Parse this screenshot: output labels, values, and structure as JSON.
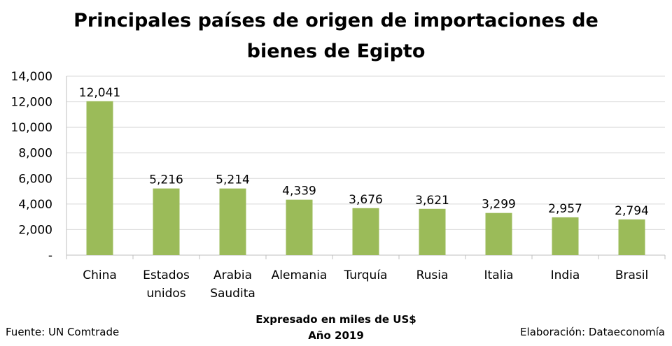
{
  "chart_data": {
    "type": "bar",
    "title_lines": [
      "Principales países de origen de importaciones de",
      "bienes de Egipto"
    ],
    "categories": [
      [
        "China"
      ],
      [
        "Estados",
        "unidos"
      ],
      [
        "Arabia",
        "Saudita"
      ],
      [
        "Alemania"
      ],
      [
        "Turquía"
      ],
      [
        "Rusia"
      ],
      [
        "Italia"
      ],
      [
        "India"
      ],
      [
        "Brasil"
      ]
    ],
    "values": [
      12041,
      5216,
      5214,
      4339,
      3676,
      3621,
      3299,
      2957,
      2794
    ],
    "value_labels": [
      "12,041",
      "5,216",
      "5,214",
      "4,339",
      "3,676",
      "3,621",
      "3,299",
      "2,957",
      "2,794"
    ],
    "ylim": [
      0,
      14000
    ],
    "y_ticks": [
      0,
      2000,
      4000,
      6000,
      8000,
      10000,
      12000,
      14000
    ],
    "y_tick_labels": [
      "-",
      "2,000",
      "4,000",
      "6,000",
      "8,000",
      "10,000",
      "12,000",
      "14,000"
    ],
    "bar_color": "#9BBB59",
    "grid": true,
    "legend": "none"
  },
  "footer": {
    "source": "Fuente: UN Comtrade",
    "note_line1": "Expresado en miles de US$",
    "note_line2": "Año 2019",
    "credit": "Elaboración: Dataeconomía"
  }
}
